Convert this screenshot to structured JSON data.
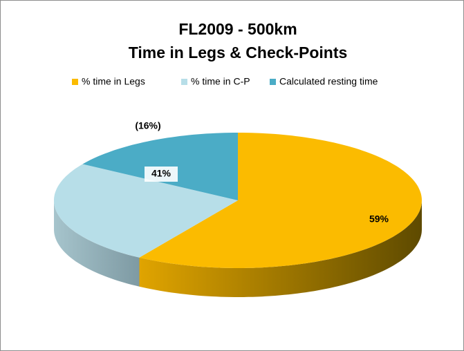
{
  "chart_data": {
    "type": "pie3d",
    "title": [
      "FL2009 - 500km",
      "Time in Legs & Check-Points"
    ],
    "categories": [
      "% time in Legs",
      "% time in C-P",
      "Calculated resting time"
    ],
    "values": [
      59,
      25,
      16
    ],
    "colors": [
      "#fbbb00",
      "#b7dee8",
      "#4bacc6"
    ],
    "annotations": [
      "59%",
      "41%",
      "(16%)"
    ],
    "legend": "top"
  }
}
